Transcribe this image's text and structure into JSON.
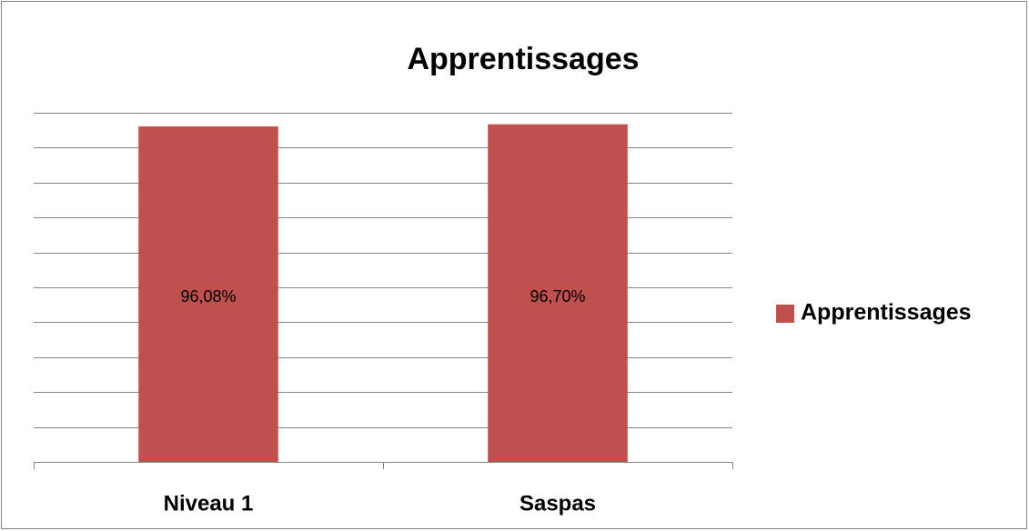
{
  "chart_data": {
    "type": "bar",
    "title": "Apprentissages",
    "categories": [
      "Niveau 1",
      "Saspas"
    ],
    "series": [
      {
        "name": "Apprentissages",
        "color": "#c0504d",
        "values": [
          96.08,
          96.7
        ],
        "value_labels": [
          "96,08%",
          "96,70%"
        ]
      }
    ],
    "ylim": [
      0,
      100
    ],
    "yticks": [
      0,
      10,
      20,
      30,
      40,
      50,
      60,
      70,
      80,
      90,
      100
    ],
    "grid": true,
    "legend": "right"
  }
}
